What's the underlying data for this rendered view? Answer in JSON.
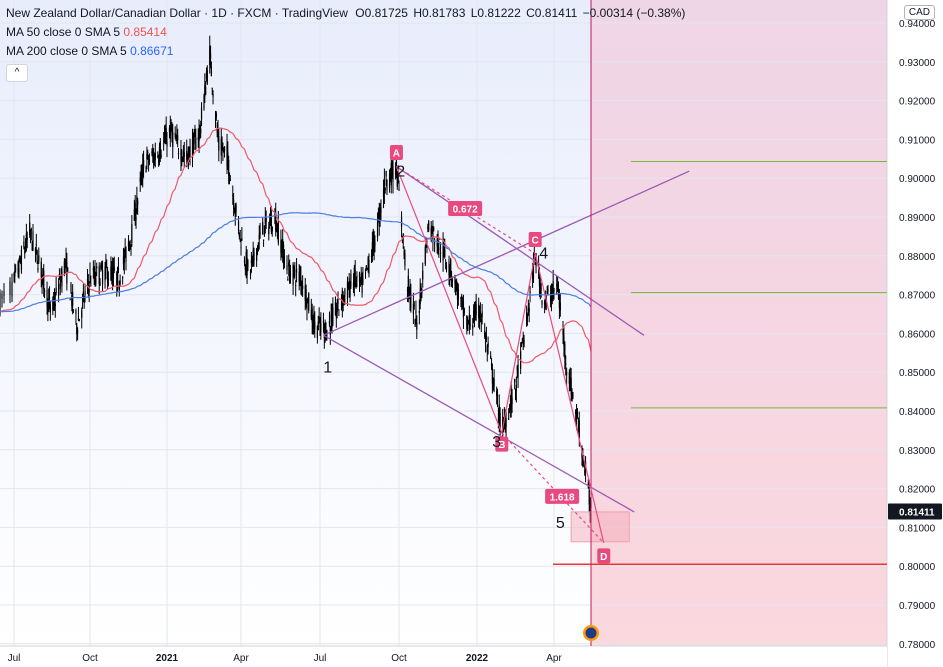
{
  "header": {
    "symbol_title": "New Zealand Dollar/Canadian Dollar · 1D · FXCM · TradingView",
    "open": "O0.81725",
    "high": "H0.81783",
    "low": "L0.81222",
    "close": "C0.81411",
    "change": "−0.00314 (−0.38%)",
    "ma50_label": "MA 50 close 0 SMA 5",
    "ma50_value": "0.85414",
    "ma200_label": "MA 200 close 0 SMA 5",
    "ma200_value": "0.86671",
    "collapse_glyph": "^",
    "currency": "CAD"
  },
  "colors": {
    "candle": "#000000",
    "ma50": "#f05869",
    "ma200": "#4a7fe0",
    "pattern": "#e84a7f",
    "channel": "#9b59b6",
    "level": "#7cb342",
    "stop": "#e53935",
    "future_zone": "#f7cbd6"
  },
  "chart_data": {
    "type": "candlestick",
    "x_tick_labels": [
      "Jul",
      "Oct",
      "2021",
      "Apr",
      "Jul",
      "Oct",
      "2022",
      "Apr"
    ],
    "y_tick_labels": [
      "0.78000",
      "0.79000",
      "0.80000",
      "0.81000",
      "0.82000",
      "0.83000",
      "0.84000",
      "0.85000",
      "0.86000",
      "0.87000",
      "0.88000",
      "0.89000",
      "0.90000",
      "0.91000",
      "0.92000",
      "0.93000",
      "0.94000"
    ],
    "ylim": [
      0.7775,
      0.9425
    ],
    "last_price_label": "0.81411",
    "price_path": [
      [
        "2020-06-24",
        0.868
      ],
      [
        "2020-07-20",
        0.886
      ],
      [
        "2020-08-01",
        0.878
      ],
      [
        "2020-08-15",
        0.865
      ],
      [
        "2020-09-01",
        0.878
      ],
      [
        "2020-09-15",
        0.862
      ],
      [
        "2020-10-01",
        0.874
      ],
      [
        "2020-10-20",
        0.876
      ],
      [
        "2020-11-05",
        0.874
      ],
      [
        "2020-11-20",
        0.886
      ],
      [
        "2020-12-05",
        0.904
      ],
      [
        "2020-12-20",
        0.906
      ],
      [
        "2021-01-05",
        0.912
      ],
      [
        "2021-01-15",
        0.908
      ],
      [
        "2021-01-25",
        0.905
      ],
      [
        "2021-02-10",
        0.912
      ],
      [
        "2021-02-22",
        0.932
      ],
      [
        "2021-03-05",
        0.908
      ],
      [
        "2021-03-15",
        0.906
      ],
      [
        "2021-03-25",
        0.892
      ],
      [
        "2021-04-10",
        0.875
      ],
      [
        "2021-04-25",
        0.886
      ],
      [
        "2021-05-10",
        0.89
      ],
      [
        "2021-05-25",
        0.876
      ],
      [
        "2021-06-10",
        0.874
      ],
      [
        "2021-06-25",
        0.862
      ],
      [
        "2021-07-10",
        0.861
      ],
      [
        "2021-07-25",
        0.868
      ],
      [
        "2021-08-10",
        0.874
      ],
      [
        "2021-08-20",
        0.872
      ],
      [
        "2021-09-05",
        0.886
      ],
      [
        "2021-09-15",
        0.899
      ],
      [
        "2021-09-28",
        0.903
      ],
      [
        "2021-10-10",
        0.874
      ],
      [
        "2021-10-22",
        0.862
      ],
      [
        "2021-11-05",
        0.888
      ],
      [
        "2021-11-20",
        0.882
      ],
      [
        "2021-12-05",
        0.874
      ],
      [
        "2021-12-20",
        0.862
      ],
      [
        "2022-01-05",
        0.866
      ],
      [
        "2022-01-20",
        0.848
      ],
      [
        "2022-01-30",
        0.835
      ],
      [
        "2022-02-15",
        0.846
      ],
      [
        "2022-03-01",
        0.864
      ],
      [
        "2022-03-10",
        0.88
      ],
      [
        "2022-03-20",
        0.868
      ],
      [
        "2022-04-05",
        0.872
      ],
      [
        "2022-04-15",
        0.852
      ],
      [
        "2022-04-30",
        0.834
      ],
      [
        "2022-05-12",
        0.814
      ]
    ],
    "series": [
      {
        "name": "MA 50 close 0 SMA 5",
        "last_value": 0.85414
      },
      {
        "name": "MA 200 close 0 SMA 5",
        "last_value": 0.86671
      }
    ],
    "pattern_points": [
      {
        "label": "A",
        "x": "2021-09-28",
        "y": 0.903
      },
      {
        "label": "B",
        "x": "2022-01-30",
        "y": 0.8343
      },
      {
        "label": "C",
        "x": "2022-03-10",
        "y": 0.8806
      },
      {
        "label": "D",
        "x": "2022-05-25",
        "y": 0.806
      }
    ],
    "wave_labels": [
      {
        "label": "1",
        "x": "2021-07-10",
        "y": 0.8515
      },
      {
        "label": "2",
        "x": "2021-10-03",
        "y": 0.902
      },
      {
        "label": "3",
        "x": "2022-01-24",
        "y": 0.8323
      },
      {
        "label": "4",
        "x": "2022-03-20",
        "y": 0.8808
      },
      {
        "label": "5",
        "x": "2022-04-08",
        "y": 0.8114
      }
    ],
    "ratio_labels": [
      {
        "label": "0.672",
        "x": "2021-12-18",
        "y": 0.8922
      },
      {
        "label": "1.618",
        "x": "2022-04-10",
        "y": 0.818
      }
    ],
    "target_levels": [
      0.9043,
      0.8705,
      0.8408
    ],
    "stop_level": 0.8005,
    "target_box": {
      "x0": "2022-04-20",
      "x1": "2022-06-20",
      "y0": 0.8063,
      "y1": 0.814
    },
    "channel_lower": [
      [
        "2021-07-05",
        0.8595
      ],
      [
        "2022-06-25",
        0.814
      ]
    ],
    "channel_upper": [
      [
        "2021-09-28",
        0.903
      ],
      [
        "2022-07-05",
        0.8595
      ]
    ],
    "wedge_line": [
      [
        "2021-07-05",
        0.8595
      ],
      [
        "2022-08-20",
        0.9018
      ]
    ],
    "current_date": "2022-05-12"
  }
}
